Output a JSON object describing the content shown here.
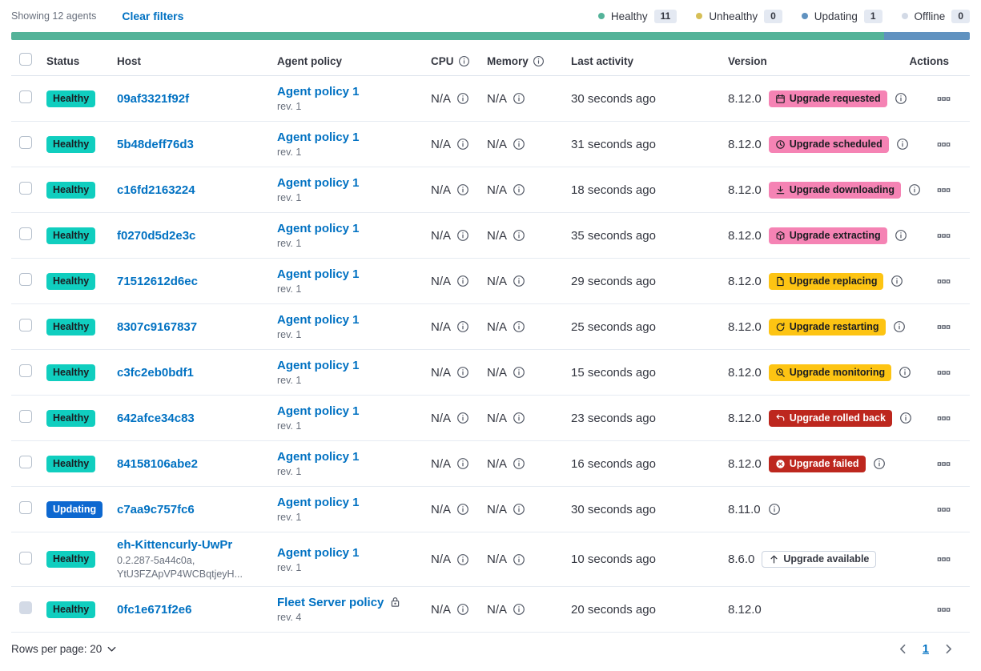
{
  "header_bar": {
    "showing_text": "Showing 12 agents",
    "clear_filters_label": "Clear filters",
    "legend": [
      {
        "label": "Healthy",
        "count": "11",
        "dot_color": "#54B399"
      },
      {
        "label": "Unhealthy",
        "count": "0",
        "dot_color": "#D6BF57"
      },
      {
        "label": "Updating",
        "count": "1",
        "dot_color": "#6092C0"
      },
      {
        "label": "Offline",
        "count": "0",
        "dot_color": "#D3DAE6"
      }
    ]
  },
  "health_bar": {
    "segments": [
      {
        "status": "healthy",
        "color": "#54B399",
        "percent": 91.1
      },
      {
        "status": "updating",
        "color": "#6092C0",
        "percent": 8.9
      }
    ]
  },
  "badge_palette": {
    "success": {
      "bg": "#10CEBF",
      "text": "#1A1C21"
    },
    "primary": {
      "bg": "#0D68D0",
      "text": "#FFFFFF"
    },
    "accent": {
      "bg": "#F583B4",
      "text": "#1A1C21"
    },
    "warning": {
      "bg": "#FDC413",
      "text": "#1A1C21"
    },
    "danger": {
      "bg": "#BD271E",
      "text": "#FFFFFF"
    },
    "hollow": {
      "bg": "#FFFFFF",
      "text": "#343741",
      "border": "#CBD3DF"
    }
  },
  "table": {
    "columns": {
      "status": "Status",
      "host": "Host",
      "policy": "Agent policy",
      "cpu": "CPU",
      "memory": "Memory",
      "last_activity": "Last activity",
      "version": "Version",
      "actions": "Actions"
    },
    "rows": [
      {
        "status": {
          "label": "Healthy",
          "color": "success"
        },
        "host": {
          "name": "09af3321f92f",
          "sub_lines": []
        },
        "policy": {
          "name": "Agent policy 1",
          "revision": "rev. 1",
          "locked": false
        },
        "cpu": "N/A",
        "memory": "N/A",
        "last_activity": "30 seconds ago",
        "version": "8.12.0",
        "upgrade_badge": {
          "label": "Upgrade requested",
          "color": "accent",
          "icon": "calendar"
        },
        "version_info_icon": true,
        "checkbox_disabled": false
      },
      {
        "status": {
          "label": "Healthy",
          "color": "success"
        },
        "host": {
          "name": "5b48deff76d3",
          "sub_lines": []
        },
        "policy": {
          "name": "Agent policy 1",
          "revision": "rev. 1",
          "locked": false
        },
        "cpu": "N/A",
        "memory": "N/A",
        "last_activity": "31 seconds ago",
        "version": "8.12.0",
        "upgrade_badge": {
          "label": "Upgrade scheduled",
          "color": "accent",
          "icon": "clock"
        },
        "version_info_icon": true,
        "checkbox_disabled": false
      },
      {
        "status": {
          "label": "Healthy",
          "color": "success"
        },
        "host": {
          "name": "c16fd2163224",
          "sub_lines": []
        },
        "policy": {
          "name": "Agent policy 1",
          "revision": "rev. 1",
          "locked": false
        },
        "cpu": "N/A",
        "memory": "N/A",
        "last_activity": "18 seconds ago",
        "version": "8.12.0",
        "upgrade_badge": {
          "label": "Upgrade downloading",
          "color": "accent",
          "icon": "download"
        },
        "version_info_icon": true,
        "checkbox_disabled": false
      },
      {
        "status": {
          "label": "Healthy",
          "color": "success"
        },
        "host": {
          "name": "f0270d5d2e3c",
          "sub_lines": []
        },
        "policy": {
          "name": "Agent policy 1",
          "revision": "rev. 1",
          "locked": false
        },
        "cpu": "N/A",
        "memory": "N/A",
        "last_activity": "35 seconds ago",
        "version": "8.12.0",
        "upgrade_badge": {
          "label": "Upgrade extracting",
          "color": "accent",
          "icon": "package"
        },
        "version_info_icon": true,
        "checkbox_disabled": false
      },
      {
        "status": {
          "label": "Healthy",
          "color": "success"
        },
        "host": {
          "name": "71512612d6ec",
          "sub_lines": []
        },
        "policy": {
          "name": "Agent policy 1",
          "revision": "rev. 1",
          "locked": false
        },
        "cpu": "N/A",
        "memory": "N/A",
        "last_activity": "29 seconds ago",
        "version": "8.12.0",
        "upgrade_badge": {
          "label": "Upgrade replacing",
          "color": "warning",
          "icon": "document"
        },
        "version_info_icon": true,
        "checkbox_disabled": false
      },
      {
        "status": {
          "label": "Healthy",
          "color": "success"
        },
        "host": {
          "name": "8307c9167837",
          "sub_lines": []
        },
        "policy": {
          "name": "Agent policy 1",
          "revision": "rev. 1",
          "locked": false
        },
        "cpu": "N/A",
        "memory": "N/A",
        "last_activity": "25 seconds ago",
        "version": "8.12.0",
        "upgrade_badge": {
          "label": "Upgrade restarting",
          "color": "warning",
          "icon": "refresh"
        },
        "version_info_icon": true,
        "checkbox_disabled": false
      },
      {
        "status": {
          "label": "Healthy",
          "color": "success"
        },
        "host": {
          "name": "c3fc2eb0bdf1",
          "sub_lines": []
        },
        "policy": {
          "name": "Agent policy 1",
          "revision": "rev. 1",
          "locked": false
        },
        "cpu": "N/A",
        "memory": "N/A",
        "last_activity": "15 seconds ago",
        "version": "8.12.0",
        "upgrade_badge": {
          "label": "Upgrade monitoring",
          "color": "warning",
          "icon": "inspect"
        },
        "version_info_icon": true,
        "checkbox_disabled": false
      },
      {
        "status": {
          "label": "Healthy",
          "color": "success"
        },
        "host": {
          "name": "642afce34c83",
          "sub_lines": []
        },
        "policy": {
          "name": "Agent policy 1",
          "revision": "rev. 1",
          "locked": false
        },
        "cpu": "N/A",
        "memory": "N/A",
        "last_activity": "23 seconds ago",
        "version": "8.12.0",
        "upgrade_badge": {
          "label": "Upgrade rolled back",
          "color": "danger",
          "icon": "undo"
        },
        "version_info_icon": true,
        "checkbox_disabled": false
      },
      {
        "status": {
          "label": "Healthy",
          "color": "success"
        },
        "host": {
          "name": "84158106abe2",
          "sub_lines": []
        },
        "policy": {
          "name": "Agent policy 1",
          "revision": "rev. 1",
          "locked": false
        },
        "cpu": "N/A",
        "memory": "N/A",
        "last_activity": "16 seconds ago",
        "version": "8.12.0",
        "upgrade_badge": {
          "label": "Upgrade failed",
          "color": "danger",
          "icon": "error"
        },
        "version_info_icon": true,
        "checkbox_disabled": false
      },
      {
        "status": {
          "label": "Updating",
          "color": "primary"
        },
        "host": {
          "name": "c7aa9c757fc6",
          "sub_lines": []
        },
        "policy": {
          "name": "Agent policy 1",
          "revision": "rev. 1",
          "locked": false
        },
        "cpu": "N/A",
        "memory": "N/A",
        "last_activity": "30 seconds ago",
        "version": "8.11.0",
        "upgrade_badge": null,
        "version_info_icon": true,
        "checkbox_disabled": false
      },
      {
        "status": {
          "label": "Healthy",
          "color": "success"
        },
        "host": {
          "name": "eh-Kittencurly-UwPr",
          "sub_lines": [
            "0.2.287-5a44c0a,",
            "YtU3FZApVP4WCBqtjeyH..."
          ]
        },
        "policy": {
          "name": "Agent policy 1",
          "revision": "rev. 1",
          "locked": false
        },
        "cpu": "N/A",
        "memory": "N/A",
        "last_activity": "10 seconds ago",
        "version": "8.6.0",
        "upgrade_badge": {
          "label": "Upgrade available",
          "color": "hollow",
          "icon": "arrow-up"
        },
        "version_info_icon": false,
        "checkbox_disabled": false
      },
      {
        "status": {
          "label": "Healthy",
          "color": "success"
        },
        "host": {
          "name": "0fc1e671f2e6",
          "sub_lines": []
        },
        "policy": {
          "name": "Fleet Server policy",
          "revision": "rev. 4",
          "locked": true
        },
        "cpu": "N/A",
        "memory": "N/A",
        "last_activity": "20 seconds ago",
        "version": "8.12.0",
        "upgrade_badge": null,
        "version_info_icon": false,
        "checkbox_disabled": true
      }
    ]
  },
  "footer": {
    "rows_per_page_label": "Rows per page: 20",
    "page_number": "1"
  }
}
